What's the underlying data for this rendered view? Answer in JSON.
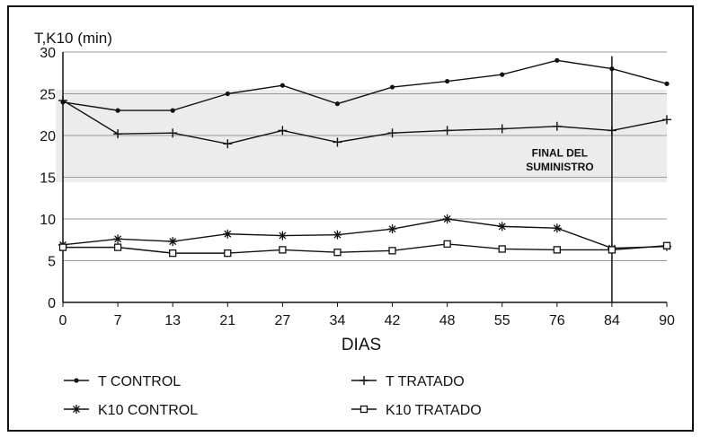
{
  "chart_data": {
    "type": "line",
    "ylabel": "T,K10 (min)",
    "xlabel": "DIAS",
    "x": [
      0,
      7,
      13,
      21,
      27,
      34,
      42,
      48,
      55,
      76,
      84,
      90
    ],
    "ylim": [
      0,
      30
    ],
    "yticks": [
      0,
      5,
      10,
      15,
      20,
      25,
      30
    ],
    "grid": true,
    "annotation": {
      "lines": [
        "FINAL DEL",
        "SUMINISTRO"
      ],
      "at_x": 84
    },
    "series": [
      {
        "name": "T CONTROL",
        "marker": "dot",
        "values": [
          24.0,
          23.0,
          23.0,
          25.0,
          26.0,
          23.8,
          25.8,
          26.5,
          27.3,
          29.0,
          28.0,
          26.2
        ]
      },
      {
        "name": "T TRATADO",
        "marker": "plus",
        "values": [
          24.2,
          20.2,
          20.3,
          19.0,
          20.6,
          19.2,
          20.3,
          20.6,
          20.8,
          21.1,
          20.6,
          21.9
        ]
      },
      {
        "name": "K10 CONTROL",
        "marker": "star",
        "values": [
          6.9,
          7.6,
          7.3,
          8.2,
          8.0,
          8.1,
          8.8,
          10.0,
          9.1,
          8.9,
          6.5,
          6.7
        ]
      },
      {
        "name": "K10 TRATADO",
        "marker": "square",
        "values": [
          6.6,
          6.6,
          5.9,
          5.9,
          6.3,
          6.0,
          6.2,
          7.0,
          6.4,
          6.3,
          6.3,
          6.8
        ]
      }
    ],
    "legend_position": "bottom"
  }
}
